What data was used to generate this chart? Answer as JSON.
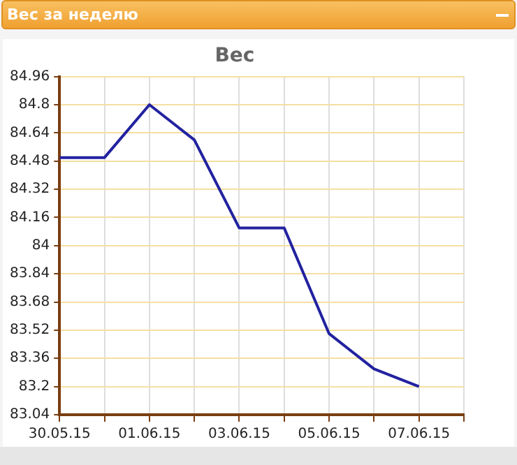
{
  "chart_data": {
    "type": "line",
    "title": "Вес за неделю",
    "subtitle": "Вес",
    "x": [
      "--05-30",
      "--05-31",
      "--06-01",
      "--06-02",
      "--06-03",
      "--06-04",
      "--06-05",
      "--06-06",
      "--06-07"
    ],
    "series": [
      {
        "color": "#2222a0",
        "values": [
          84.5,
          84.5,
          84.8,
          84.6,
          84.1,
          84.1,
          83.5,
          83.3,
          83.2
        ]
      }
    ],
    "xlim": [
      "--05-30",
      "--06-08"
    ],
    "xticks": [
      {
        "value": "--05-30",
        "label": "30.05.15"
      },
      {
        "value": "--05-31",
        "label": null
      },
      {
        "value": "--06-01",
        "label": "01.06.15"
      },
      {
        "value": "--06-02",
        "label": null
      },
      {
        "value": "--06-03",
        "label": "03.06.15"
      },
      {
        "value": "--06-04",
        "label": null
      },
      {
        "value": "--06-05",
        "label": "05.06.15"
      },
      {
        "value": "--06-06",
        "label": null
      },
      {
        "value": "--06-07",
        "label": "07.06.15"
      },
      {
        "value": "--06-08",
        "label": null
      }
    ],
    "ylim": [
      83.04,
      84.96
    ],
    "yticks": [
      83.04,
      83.2,
      83.36,
      83.52,
      83.68,
      83.84,
      84,
      84.16,
      84.32,
      84.48,
      84.64,
      84.8,
      84.96
    ],
    "grid": true,
    "legend": false,
    "marker": "none",
    "line_style": "solid"
  }
}
